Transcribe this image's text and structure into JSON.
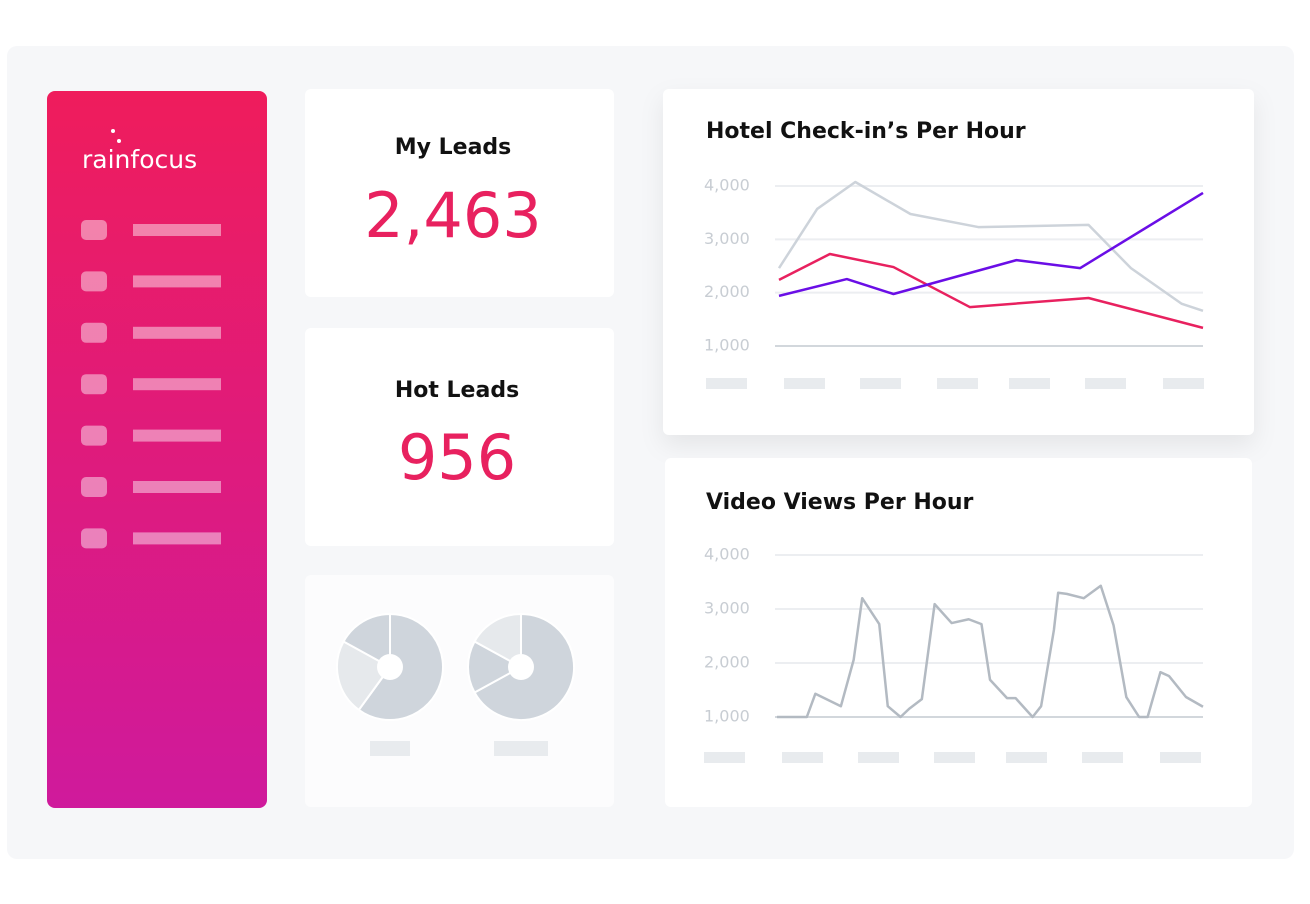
{
  "brand": "rainfocus",
  "kpis": [
    {
      "label": "My Leads",
      "value": "2,463"
    },
    {
      "label": "Hot Leads",
      "value": "956"
    }
  ],
  "chart_data": [
    {
      "type": "line",
      "title": "Hotel Check-in’s Per Hour",
      "xlim": [
        0,
        100
      ],
      "ylim": [
        1000,
        4000
      ],
      "yticks": [
        {
          "value": 1000,
          "label": "1,000"
        },
        {
          "value": 2000,
          "label": "2,000"
        },
        {
          "value": 3000,
          "label": "3,000"
        },
        {
          "value": 4000,
          "label": "4,000"
        }
      ],
      "grid": true,
      "series": [
        {
          "color": "#cdd3da",
          "x": [
            0,
            9,
            18,
            31,
            47,
            73,
            83,
            95,
            100
          ],
          "values": [
            2460,
            3570,
            4075,
            3475,
            3230,
            3270,
            2460,
            1790,
            1660
          ]
        },
        {
          "color": "#e8215f",
          "x": [
            0,
            12,
            27,
            45,
            73,
            100
          ],
          "values": [
            2240,
            2725,
            2480,
            1730,
            1900,
            1340
          ]
        },
        {
          "color": "#6a0ee6",
          "x": [
            0,
            16,
            27,
            56,
            71,
            100
          ],
          "values": [
            1940,
            2255,
            1975,
            2610,
            2460,
            3870
          ]
        }
      ]
    },
    {
      "type": "line",
      "title": "Video Views Per Hour",
      "xlim": [
        0,
        100
      ],
      "ylim": [
        1000,
        4000
      ],
      "yticks": [
        {
          "value": 1000,
          "label": "1,000"
        },
        {
          "value": 2000,
          "label": "2,000"
        },
        {
          "value": 3000,
          "label": "3,000"
        },
        {
          "value": 4000,
          "label": "4,000"
        }
      ],
      "grid": true,
      "color": "#b3bac2",
      "x": [
        0,
        7,
        9,
        15,
        18,
        20,
        24,
        26,
        29,
        31,
        34,
        37,
        41,
        45,
        48,
        50,
        54,
        56,
        60,
        62,
        65,
        66,
        68,
        72,
        76,
        79,
        82,
        85,
        87,
        90,
        92,
        96,
        100
      ],
      "values": [
        1000,
        1000,
        1430,
        1200,
        2060,
        3200,
        2720,
        1200,
        1000,
        1150,
        1330,
        3090,
        2740,
        2810,
        2720,
        1690,
        1350,
        1350,
        1000,
        1200,
        2610,
        3300,
        3280,
        3200,
        3430,
        2700,
        1370,
        1000,
        1000,
        1830,
        1760,
        1370,
        1190
      ]
    },
    {
      "type": "pie",
      "values": [
        60,
        23,
        17
      ],
      "colors": [
        "#cfd5dc",
        "#e6e9ec",
        "#cfd5dc"
      ]
    },
    {
      "type": "pie",
      "values": [
        67,
        16,
        17
      ],
      "colors": [
        "#cfd5dc",
        "#cfd5dc",
        "#e6e9ec"
      ]
    }
  ]
}
